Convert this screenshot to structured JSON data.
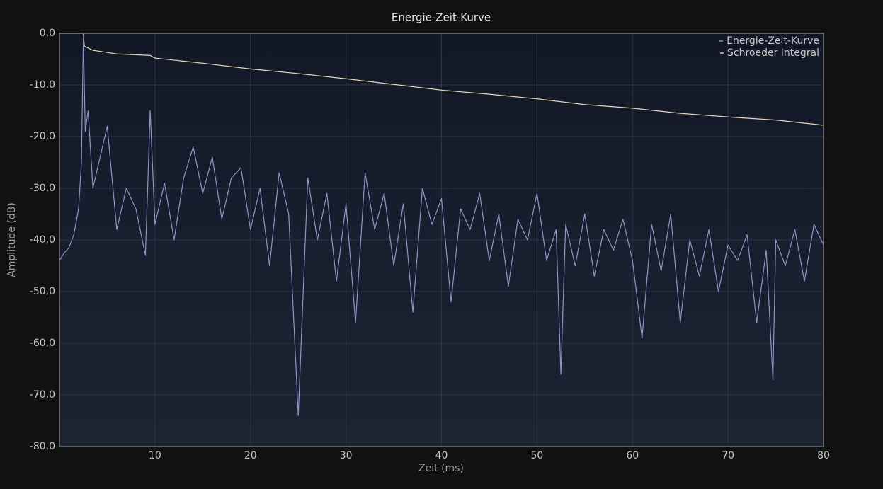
{
  "chart_data": {
    "type": "line",
    "title": "Energie-Zeit-Kurve",
    "x_label": "Zeit (ms)",
    "y_label": "Amplitude (dB)",
    "xlim": [
      0,
      80
    ],
    "ylim": [
      -80,
      0
    ],
    "xticks": [
      10,
      20,
      30,
      40,
      50,
      60,
      70,
      80
    ],
    "yticks": [
      {
        "value": 0,
        "label": "0,0"
      },
      {
        "value": -10,
        "label": "-10,0"
      },
      {
        "value": -20,
        "label": "-20,0"
      },
      {
        "value": -30,
        "label": "-30,0"
      },
      {
        "value": -40,
        "label": "-40,0"
      },
      {
        "value": -50,
        "label": "-50,0"
      },
      {
        "value": -60,
        "label": "-60,0"
      },
      {
        "value": -70,
        "label": "-70,0"
      },
      {
        "value": -80,
        "label": "-80,0"
      }
    ],
    "grid": true,
    "legend": "top-right",
    "series": [
      {
        "name": "Energie-Zeit-Kurve",
        "color": "#8a96c8",
        "x": [
          0,
          0.5,
          1,
          1.5,
          2,
          2.3,
          2.5,
          2.7,
          3,
          3.5,
          4,
          5,
          6,
          7,
          8,
          9,
          9.5,
          10,
          11,
          12,
          13,
          14,
          15,
          16,
          17,
          18,
          19,
          20,
          21,
          22,
          23,
          24,
          25,
          26,
          27,
          28,
          29,
          30,
          31,
          32,
          33,
          34,
          35,
          36,
          37,
          38,
          39,
          40,
          41,
          42,
          43,
          44,
          45,
          46,
          47,
          48,
          49,
          50,
          51,
          52,
          52.5,
          53,
          54,
          55,
          56,
          57,
          58,
          59,
          60,
          61,
          62,
          63,
          64,
          65,
          66,
          67,
          68,
          69,
          70,
          71,
          72,
          73,
          74,
          74.7,
          75,
          76,
          77,
          78,
          79,
          80
        ],
        "values": [
          -44,
          -42.5,
          -41.5,
          -39,
          -34,
          -25,
          -1,
          -19,
          -15,
          -30,
          -26,
          -18,
          -38,
          -30,
          -34,
          -43,
          -15,
          -37,
          -29,
          -40,
          -28,
          -22,
          -31,
          -24,
          -36,
          -28,
          -26,
          -38,
          -30,
          -45,
          -27,
          -35,
          -74,
          -28,
          -40,
          -31,
          -48,
          -33,
          -56,
          -27,
          -38,
          -31,
          -45,
          -33,
          -54,
          -30,
          -37,
          -32,
          -52,
          -34,
          -38,
          -31,
          -44,
          -35,
          -49,
          -36,
          -40,
          -31,
          -44,
          -38,
          -66,
          -37,
          -45,
          -35,
          -47,
          -38,
          -42,
          -36,
          -44,
          -59,
          -37,
          -46,
          -35,
          -56,
          -40,
          -47,
          -38,
          -50,
          -41,
          -44,
          -39,
          -56,
          -42,
          -67,
          -40,
          -45,
          -38,
          -48,
          -37,
          -41
        ]
      },
      {
        "name": "Schroeder Integral",
        "color": "#e8d8c0",
        "x": [
          0,
          2.5,
          2.6,
          3.5,
          6,
          9.5,
          10,
          15,
          20,
          25,
          30,
          35,
          40,
          45,
          50,
          55,
          60,
          65,
          70,
          75,
          80
        ],
        "values": [
          0,
          0,
          -2.5,
          -3.3,
          -4,
          -4.3,
          -4.8,
          -5.8,
          -6.9,
          -7.8,
          -8.8,
          -9.9,
          -11,
          -11.8,
          -12.7,
          -13.8,
          -14.5,
          -15.5,
          -16.2,
          -16.8,
          -17.8
        ]
      }
    ]
  }
}
